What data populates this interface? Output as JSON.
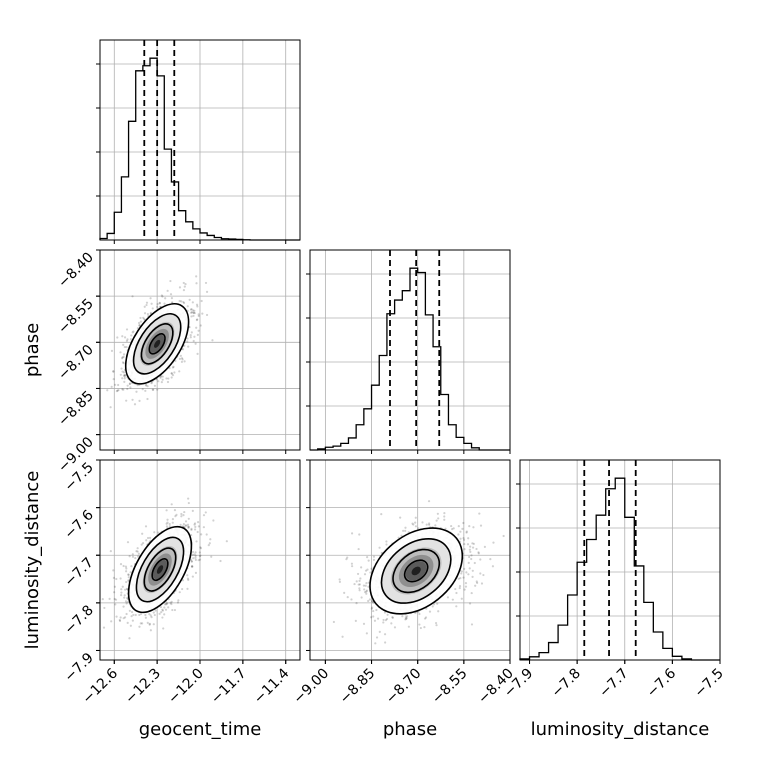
{
  "chart_data": {
    "type": "corner",
    "parameters": [
      "geocent_time",
      "phase",
      "luminosity_distance"
    ],
    "axes": {
      "geocent_time": {
        "label": "geocent_time",
        "range": [
          -12.7,
          -11.3
        ],
        "ticks": [
          -12.6,
          -12.3,
          -12.0,
          -11.7,
          -11.4
        ],
        "tick_labels": [
          "−12.6",
          "−12.3",
          "−12.0",
          "−11.7",
          "−11.4"
        ]
      },
      "phase": {
        "label": "phase",
        "range": [
          -9.05,
          -8.4
        ],
        "ticks": [
          -9.0,
          -8.85,
          -8.7,
          -8.55,
          -8.4
        ],
        "tick_labels": [
          "−9.00",
          "−8.85",
          "−8.70",
          "−8.55",
          "−8.40"
        ]
      },
      "luminosity_distance": {
        "label": "luminosity_distance",
        "range": [
          -7.92,
          -7.5
        ],
        "ticks": [
          -7.9,
          -7.8,
          -7.7,
          -7.6,
          -7.5
        ],
        "tick_labels": [
          "−7.9",
          "−7.8",
          "−7.7",
          "−7.6",
          "−7.5"
        ]
      }
    },
    "marginals": [
      {
        "parameter": "geocent_time",
        "bin_edges": [
          -12.7,
          -12.65,
          -12.6,
          -12.55,
          -12.5,
          -12.45,
          -12.4,
          -12.35,
          -12.3,
          -12.25,
          -12.2,
          -12.15,
          -12.1,
          -12.05,
          -12.0,
          -11.95,
          -11.9,
          -11.85,
          -11.8,
          -11.75,
          -11.7,
          -11.65,
          -11.6,
          -11.55,
          -11.5,
          -11.45,
          -11.4,
          -11.35,
          -11.3
        ],
        "counts": [
          0.3,
          1.3,
          5.5,
          12.5,
          23.5,
          33.5,
          34.5,
          36.0,
          32.5,
          18.0,
          11.5,
          5.8,
          3.6,
          2.2,
          1.4,
          0.9,
          0.5,
          0.25,
          0.2,
          0.12,
          0.05,
          0,
          0,
          0,
          0,
          0,
          0,
          0
        ],
        "quantiles": [
          -12.39,
          -12.3,
          -12.18
        ]
      },
      {
        "parameter": "phase",
        "bin_edges": [
          -9.05,
          -9.025,
          -9.0,
          -8.975,
          -8.95,
          -8.925,
          -8.9,
          -8.875,
          -8.85,
          -8.825,
          -8.8,
          -8.775,
          -8.75,
          -8.725,
          -8.7,
          -8.675,
          -8.65,
          -8.625,
          -8.6,
          -8.575,
          -8.55,
          -8.525,
          -8.5,
          -8.475,
          -8.45,
          -8.425,
          -8.4
        ],
        "counts": [
          0,
          0.2,
          0.5,
          0.7,
          1.2,
          2.2,
          4.6,
          7.5,
          11.8,
          17.2,
          24.8,
          27.3,
          29.0,
          33.1,
          32.3,
          24.6,
          18.8,
          10.1,
          4.6,
          2.3,
          1.2,
          0.4,
          0,
          0,
          0,
          0
        ],
        "quantiles": [
          -8.79,
          -8.705,
          -8.63
        ]
      },
      {
        "parameter": "luminosity_distance",
        "bin_edges": [
          -7.92,
          -7.9,
          -7.88,
          -7.86,
          -7.84,
          -7.82,
          -7.8,
          -7.78,
          -7.76,
          -7.74,
          -7.72,
          -7.7,
          -7.68,
          -7.66,
          -7.64,
          -7.62,
          -7.6,
          -7.58,
          -7.56,
          -7.54,
          -7.52,
          -7.5
        ],
        "counts": [
          0.2,
          0.6,
          1.4,
          3.3,
          6.6,
          12.3,
          18.5,
          22.8,
          27.4,
          32.4,
          34.4,
          27.0,
          17.8,
          10.9,
          5.3,
          2.2,
          0.7,
          0.2,
          0,
          0,
          0
        ],
        "quantiles": [
          -7.785,
          -7.733,
          -7.677
        ]
      }
    ],
    "pairs": [
      {
        "x": "geocent_time",
        "y": "phase",
        "center": [
          -12.3,
          -8.705
        ],
        "sigma": [
          0.11,
          0.065
        ],
        "rho": 0.55
      },
      {
        "x": "geocent_time",
        "y": "luminosity_distance",
        "center": [
          -12.28,
          -7.73
        ],
        "sigma": [
          0.11,
          0.045
        ],
        "rho": 0.55
      },
      {
        "x": "phase",
        "y": "luminosity_distance",
        "center": [
          -8.705,
          -7.733
        ],
        "sigma": [
          0.075,
          0.045
        ],
        "rho": 0.35
      }
    ],
    "contour_levels_sigma": [
      0.5,
      1.0,
      1.5,
      2.0
    ],
    "grid": true
  }
}
